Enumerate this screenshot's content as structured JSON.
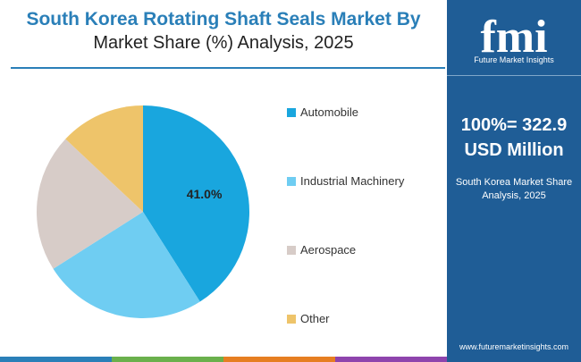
{
  "chart_data": {
    "type": "pie",
    "title": "South Korea Rotating Shaft Seals Market By",
    "subtitle": "Market Share (%) Analysis, 2025",
    "slices": [
      {
        "label": "Automobile",
        "value": 41.0,
        "color": "#19a6de",
        "data_label": "41.0%"
      },
      {
        "label": "Industrial Machinery",
        "value": 25.0,
        "color": "#6fcdf2",
        "data_label": ""
      },
      {
        "label": "Aerospace",
        "value": 21.0,
        "color": "#d7ccc8",
        "data_label": ""
      },
      {
        "label": "Other",
        "value": 13.0,
        "color": "#eec46a",
        "data_label": ""
      }
    ],
    "legend_position": "right"
  },
  "sidebar": {
    "logo_letters": "fmi",
    "logo_tagline": "Future Market Insights",
    "total_line1": "100%= 322.9",
    "total_line2": "USD Million",
    "desc_line1": "South Korea Market Share",
    "desc_line2": "Analysis, 2025",
    "url": "www.futuremarketinsights.com"
  },
  "colors": {
    "title_blue": "#2a7fb8",
    "sidebar_blue": "#1f5d96",
    "bottom_bar": [
      "#2a7fb8",
      "#6ab04c",
      "#e67e22",
      "#8e44ad"
    ]
  }
}
